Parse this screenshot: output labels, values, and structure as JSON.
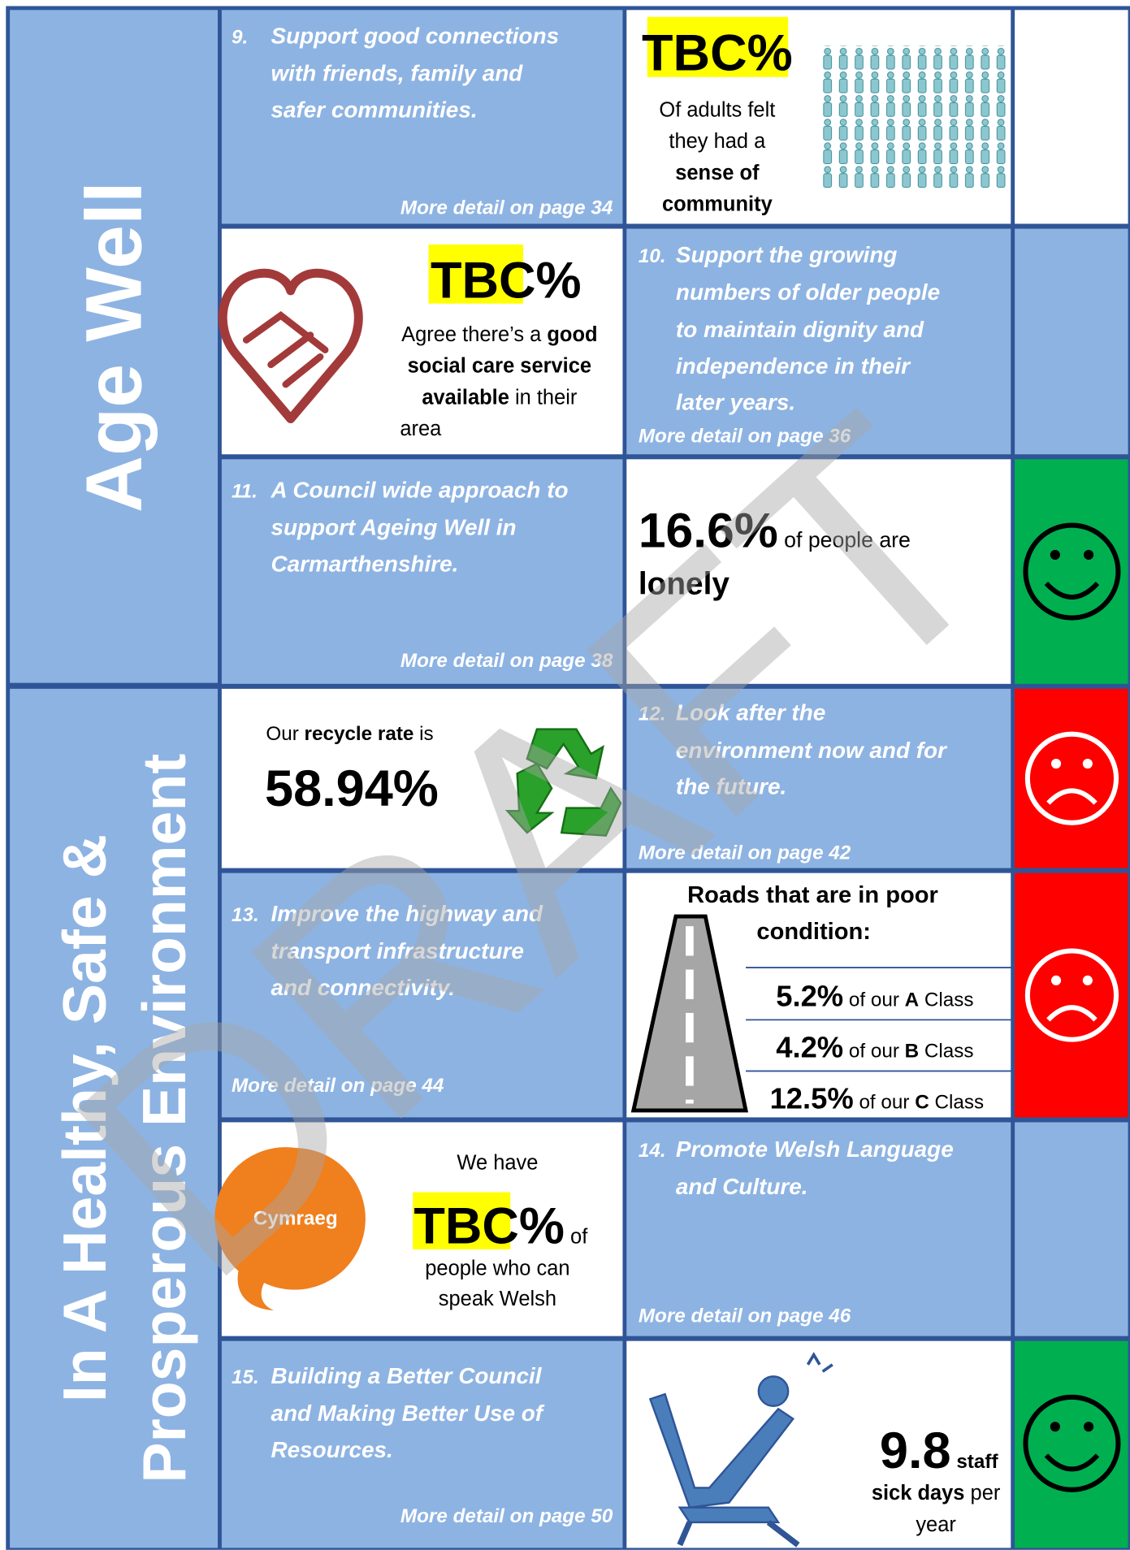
{
  "watermark": "DRAFT",
  "sections": [
    {
      "title_lines": [
        "Age Well"
      ]
    },
    {
      "title_lines": [
        "In A Healthy, Safe &",
        "Prosperous Environment"
      ]
    }
  ],
  "objectives": [
    {
      "number": "9.",
      "lines": [
        "Support good connections",
        "with friends, family and",
        "safer communities."
      ],
      "detail": "More detail on page 34"
    },
    {
      "number": "10.",
      "lines": [
        "Support the growing",
        "numbers of older people",
        "to maintain dignity and",
        "independence in their",
        "later years."
      ],
      "detail": "More detail on page 36"
    },
    {
      "number": "11.",
      "lines": [
        "A Council wide approach to",
        "support Ageing Well in",
        "Carmarthenshire."
      ],
      "detail": "More detail on page 38"
    },
    {
      "number": "12.",
      "lines": [
        "Look after the",
        "environment now and for",
        "the future."
      ],
      "detail": "More detail on page 42"
    },
    {
      "number": "13.",
      "lines": [
        "Improve the highway and",
        "transport infrastructure",
        "and connectivity."
      ],
      "detail": "More detail on page 44"
    },
    {
      "number": "14.",
      "lines": [
        "Promote Welsh Language",
        "and Culture."
      ],
      "detail": "More detail on page 46"
    },
    {
      "number": "15.",
      "lines": [
        "Building a Better Council",
        "and Making Better Use of",
        "Resources."
      ],
      "detail": "More detail on page 50"
    }
  ],
  "stats": {
    "community": {
      "figure": "TBC%",
      "lines": [
        "Of adults felt",
        "they had a",
        "sense of",
        "community"
      ]
    },
    "social_care": {
      "figure": "TBC",
      "unit": "%",
      "text": [
        "Agree there’s a ",
        "good",
        "social care service",
        "available",
        " in their",
        "area"
      ]
    },
    "lonely": {
      "figure": "16.6%",
      "text": " of people are",
      "emphasis": "lonely"
    },
    "recycle": {
      "text": [
        "Our ",
        "recycle rate",
        " is"
      ],
      "figure": "58.94%"
    },
    "roads": {
      "title_lines": [
        "Roads that are in poor",
        "condition:"
      ],
      "rows": [
        {
          "figure": "5.2%",
          "text": " of our ",
          "class": "A",
          "suffix": " Class"
        },
        {
          "figure": "4.2%",
          "text": " of our ",
          "class": "B",
          "suffix": " Class"
        },
        {
          "figure": "12.5%",
          "text": " of our ",
          "class": "C",
          "suffix": " Class"
        }
      ]
    },
    "welsh": {
      "badge": "Cymraeg",
      "intro": "We have",
      "figure": "TBC",
      "unit": "%",
      "text": " of",
      "lines": [
        "people who can",
        "speak Welsh"
      ]
    },
    "sickness": {
      "figure": "9.8",
      "unit": " staff",
      "lines": [
        "sick days",
        " per",
        "year"
      ]
    }
  }
}
